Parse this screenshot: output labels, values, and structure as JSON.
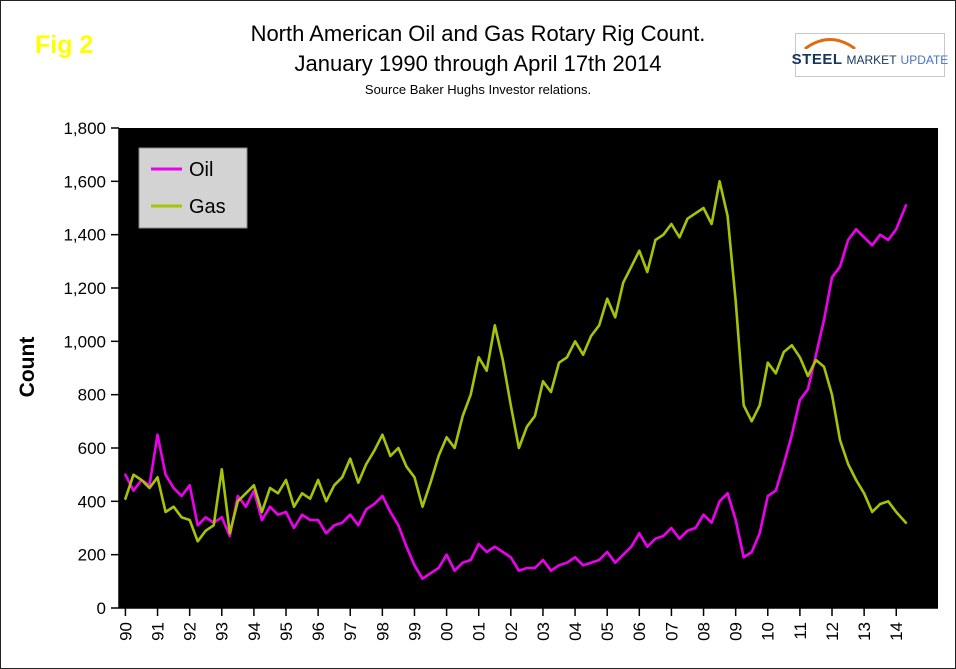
{
  "figure_label": "Fig 2",
  "title": {
    "line1": "North American Oil and Gas Rotary Rig Count.",
    "line2": "January 1990 through April 17th 2014",
    "source": "Source Baker Hughs Investor relations."
  },
  "logo": {
    "steel": "STEEL",
    "market": "MARKET",
    "update": "UPDATE",
    "swoosh_color": "#e06a10"
  },
  "chart_data": {
    "type": "line",
    "title": "North American Oil and Gas Rotary Rig Count. January 1990 through April 17th 2014",
    "xlabel": "",
    "ylabel": "Count",
    "plot_bg": "#000000",
    "grid": false,
    "ylim": [
      0,
      1800
    ],
    "xlim": [
      1989.8,
      2015.3
    ],
    "y_ticks": [
      {
        "v": 0,
        "label": "0"
      },
      {
        "v": 200,
        "label": "200"
      },
      {
        "v": 400,
        "label": "400"
      },
      {
        "v": 600,
        "label": "600"
      },
      {
        "v": 800,
        "label": "800"
      },
      {
        "v": 1000,
        "label": "1,000"
      },
      {
        "v": 1200,
        "label": "1,200"
      },
      {
        "v": 1400,
        "label": "1,400"
      },
      {
        "v": 1600,
        "label": "1,600"
      },
      {
        "v": 1800,
        "label": "1,800"
      }
    ],
    "x_ticks": [
      {
        "v": 1990,
        "label": "90"
      },
      {
        "v": 1991,
        "label": "91"
      },
      {
        "v": 1992,
        "label": "92"
      },
      {
        "v": 1993,
        "label": "93"
      },
      {
        "v": 1994,
        "label": "94"
      },
      {
        "v": 1995,
        "label": "95"
      },
      {
        "v": 1996,
        "label": "96"
      },
      {
        "v": 1997,
        "label": "97"
      },
      {
        "v": 1998,
        "label": "98"
      },
      {
        "v": 1999,
        "label": "99"
      },
      {
        "v": 2000,
        "label": "00"
      },
      {
        "v": 2001,
        "label": "01"
      },
      {
        "v": 2002,
        "label": "02"
      },
      {
        "v": 2003,
        "label": "03"
      },
      {
        "v": 2004,
        "label": "04"
      },
      {
        "v": 2005,
        "label": "05"
      },
      {
        "v": 2006,
        "label": "06"
      },
      {
        "v": 2007,
        "label": "07"
      },
      {
        "v": 2008,
        "label": "08"
      },
      {
        "v": 2009,
        "label": "09"
      },
      {
        "v": 2010,
        "label": "10"
      },
      {
        "v": 2011,
        "label": "11"
      },
      {
        "v": 2012,
        "label": "12"
      },
      {
        "v": 2013,
        "label": "13"
      },
      {
        "v": 2014,
        "label": "14"
      }
    ],
    "legend": {
      "position": "top-left",
      "bg": "#d3d3d3",
      "border": "#8a8a8a",
      "entries": [
        {
          "name": "Oil",
          "color": "#ee00ee"
        },
        {
          "name": "Gas",
          "color": "#a6c307"
        }
      ]
    },
    "x": [
      1990,
      1990.25,
      1990.5,
      1990.75,
      1991,
      1991.25,
      1991.5,
      1991.75,
      1992,
      1992.25,
      1992.5,
      1992.75,
      1993,
      1993.25,
      1993.5,
      1993.75,
      1994,
      1994.25,
      1994.5,
      1994.75,
      1995,
      1995.25,
      1995.5,
      1995.75,
      1996,
      1996.25,
      1996.5,
      1996.75,
      1997,
      1997.25,
      1997.5,
      1997.75,
      1998,
      1998.25,
      1998.5,
      1998.75,
      1999,
      1999.25,
      1999.5,
      1999.75,
      2000,
      2000.25,
      2000.5,
      2000.75,
      2001,
      2001.25,
      2001.5,
      2001.75,
      2002,
      2002.25,
      2002.5,
      2002.75,
      2003,
      2003.25,
      2003.5,
      2003.75,
      2004,
      2004.25,
      2004.5,
      2004.75,
      2005,
      2005.25,
      2005.5,
      2005.75,
      2006,
      2006.25,
      2006.5,
      2006.75,
      2007,
      2007.25,
      2007.5,
      2007.75,
      2008,
      2008.25,
      2008.5,
      2008.75,
      2009,
      2009.25,
      2009.5,
      2009.75,
      2010,
      2010.25,
      2010.5,
      2010.75,
      2011,
      2011.25,
      2011.5,
      2011.75,
      2012,
      2012.25,
      2012.5,
      2012.75,
      2013,
      2013.25,
      2013.5,
      2013.75,
      2014,
      2014.3
    ],
    "series": [
      {
        "name": "Oil",
        "color": "#ee00ee",
        "y": [
          500,
          440,
          480,
          460,
          650,
          500,
          450,
          420,
          460,
          310,
          340,
          320,
          340,
          270,
          420,
          380,
          440,
          330,
          380,
          350,
          360,
          300,
          350,
          330,
          330,
          280,
          310,
          320,
          350,
          310,
          370,
          390,
          420,
          360,
          310,
          230,
          160,
          110,
          130,
          150,
          200,
          140,
          170,
          180,
          240,
          210,
          230,
          210,
          190,
          140,
          150,
          150,
          180,
          140,
          160,
          170,
          190,
          160,
          170,
          180,
          210,
          170,
          200,
          230,
          280,
          230,
          260,
          270,
          300,
          260,
          290,
          300,
          350,
          320,
          400,
          430,
          330,
          190,
          210,
          280,
          420,
          440,
          540,
          650,
          780,
          820,
          950,
          1080,
          1240,
          1280,
          1380,
          1420,
          1390,
          1360,
          1400,
          1380,
          1420,
          1510
        ]
      },
      {
        "name": "Gas",
        "color": "#a6c307",
        "y": [
          410,
          500,
          480,
          450,
          490,
          360,
          380,
          340,
          330,
          250,
          290,
          310,
          520,
          280,
          400,
          430,
          460,
          360,
          450,
          430,
          480,
          380,
          430,
          410,
          480,
          400,
          460,
          490,
          560,
          470,
          540,
          590,
          650,
          570,
          600,
          530,
          490,
          380,
          470,
          570,
          640,
          600,
          720,
          800,
          940,
          890,
          1060,
          930,
          760,
          600,
          680,
          720,
          850,
          810,
          920,
          940,
          1000,
          950,
          1020,
          1060,
          1160,
          1090,
          1220,
          1280,
          1340,
          1260,
          1380,
          1400,
          1440,
          1390,
          1460,
          1480,
          1500,
          1440,
          1600,
          1470,
          1150,
          760,
          700,
          760,
          920,
          880,
          960,
          985,
          940,
          870,
          930,
          905,
          800,
          630,
          540,
          480,
          430,
          360,
          390,
          400,
          360,
          320
        ]
      }
    ]
  }
}
